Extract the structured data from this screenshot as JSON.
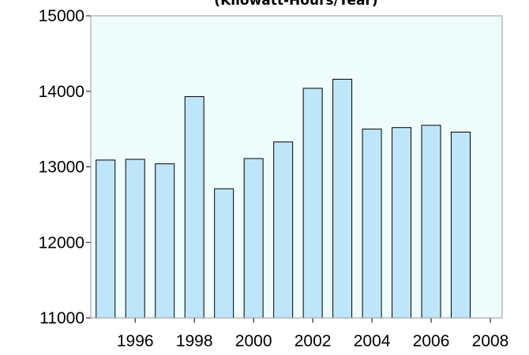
{
  "chart_data": {
    "type": "bar",
    "title": "(Kilowatt-Hours/Year)",
    "x": [
      1995,
      1996,
      1997,
      1998,
      1999,
      2000,
      2001,
      2002,
      2003,
      2004,
      2005,
      2006,
      2007
    ],
    "values": [
      13090,
      13100,
      13040,
      13930,
      12710,
      13110,
      13330,
      14040,
      14160,
      13500,
      13520,
      13550,
      13460
    ],
    "color": "#bfe6f8",
    "xlim": [
      1994.5,
      2008.4
    ],
    "xticks": [
      1996,
      1998,
      2000,
      2002,
      2004,
      2006,
      2008
    ],
    "ylim": [
      11000,
      15000
    ],
    "yticks": [
      11000,
      12000,
      13000,
      14000,
      15000
    ],
    "grid": false
  }
}
